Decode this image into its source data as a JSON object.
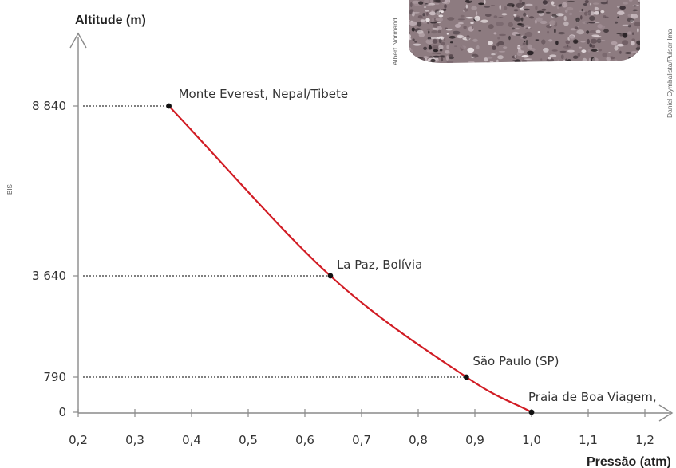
{
  "chart_data": {
    "type": "line",
    "ylabel": "Altitude (m)",
    "xlabel": "Pressão (atm)",
    "x_ticks": [
      {
        "value": 0.2,
        "label": "0,2"
      },
      {
        "value": 0.3,
        "label": "0,3"
      },
      {
        "value": 0.4,
        "label": "0,4"
      },
      {
        "value": 0.5,
        "label": "0,5"
      },
      {
        "value": 0.6,
        "label": "0,6"
      },
      {
        "value": 0.7,
        "label": "0,7"
      },
      {
        "value": 0.8,
        "label": "0,8"
      },
      {
        "value": 0.9,
        "label": "0,9"
      },
      {
        "value": 1.0,
        "label": "1,0"
      },
      {
        "value": 1.1,
        "label": "1,1"
      },
      {
        "value": 1.2,
        "label": "1,2"
      }
    ],
    "y_ticks": [
      {
        "value": 8840,
        "label": "8 840"
      },
      {
        "value": 3640,
        "label": "3 640"
      },
      {
        "value": 790,
        "label": "790"
      },
      {
        "value": 0,
        "label": "0"
      }
    ],
    "xlim": [
      0.2,
      1.2
    ],
    "y_scale": "custom piecewise (not to scale)",
    "points": [
      {
        "x": 0.36,
        "y": 8840,
        "label": "Monte Everest, Nepal/Tibete"
      },
      {
        "x": 0.645,
        "y": 3640,
        "label": "La Paz, Bolívia"
      },
      {
        "x": 0.885,
        "y": 790,
        "label": "São Paulo (SP)"
      },
      {
        "x": 1.0,
        "y": 0,
        "label": "Praia de Boa Viagem,"
      }
    ],
    "line_color": "#d11c24",
    "grid": false
  },
  "photo_credits": {
    "left": "Albert Normand",
    "right": "Daniel Cymbalista/Pulsar Ima"
  },
  "side_code": "BIS",
  "colors": {
    "curve": "#d11c24",
    "axis": "#8a8a8a",
    "text": "#333333"
  }
}
